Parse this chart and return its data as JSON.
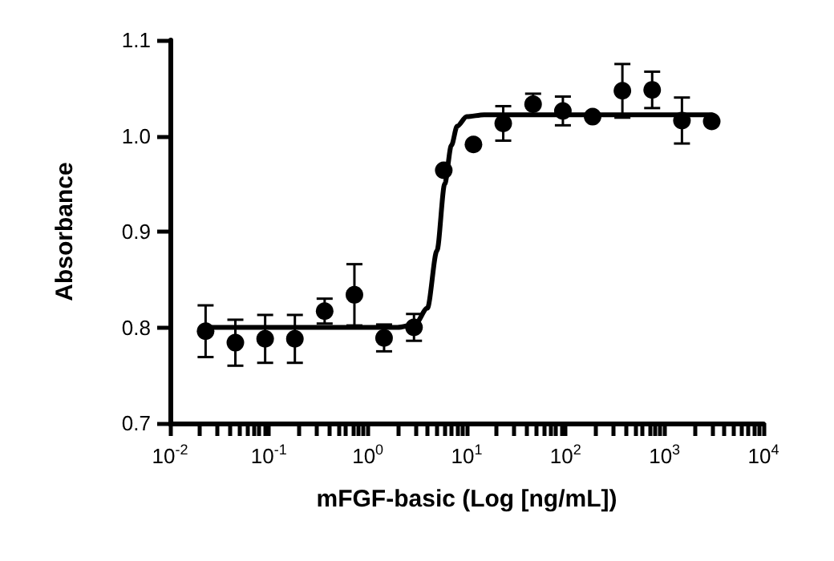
{
  "chart_data": {
    "type": "scatter",
    "xlabel": "mFGF-basic (Log [ng/mL])",
    "ylabel": "Absorbance",
    "log": "x",
    "marker": "circle",
    "grid": false,
    "xlim": [
      0.01,
      10000
    ],
    "xticks": [
      {
        "value": 0.01,
        "label": "10$^{-2}$"
      },
      {
        "value": 0.1,
        "label": "10$^{-1}$"
      },
      {
        "value": 1,
        "label": "10$^{0}$"
      },
      {
        "value": 10,
        "label": "10$^{1}$"
      },
      {
        "value": 100,
        "label": "10$^{2}$"
      },
      {
        "value": 1000,
        "label": "10$^{3}$"
      },
      {
        "value": 10000,
        "label": "10$^{4}$"
      }
    ],
    "ylim": [
      0.7,
      1.1
    ],
    "yticks": [
      {
        "value": 0.7,
        "label": "0.7"
      },
      {
        "value": 0.8,
        "label": "0.8"
      },
      {
        "value": 0.9,
        "label": "0.9"
      },
      {
        "value": 1.0,
        "label": "1.0"
      },
      {
        "value": 1.1,
        "label": "1.1"
      }
    ],
    "series": [
      {
        "color": "#000000",
        "x": [
          0.0229,
          0.0458,
          0.0916,
          0.183,
          0.366,
          0.732,
          1.46,
          2.93,
          5.86,
          11.7,
          23.4,
          46.9,
          93.8,
          187.5,
          375,
          750,
          1500,
          3000
        ],
        "values": [
          0.796,
          0.784,
          0.788,
          0.788,
          0.817,
          0.834,
          0.789,
          0.8,
          0.964,
          0.991,
          1.013,
          1.033,
          1.026,
          1.02,
          1.047,
          1.048,
          1.016,
          1.015
        ],
        "errors": [
          0.027,
          0.024,
          0.025,
          0.025,
          0.013,
          0.032,
          0.014,
          0.014,
          null,
          null,
          0.018,
          0.011,
          0.015,
          null,
          0.028,
          0.019,
          0.024,
          null
        ]
      },
      {
        "type": "line",
        "color": "#000000",
        "marker": "none",
        "x": [
          0.0229,
          2,
          3,
          4,
          5,
          6,
          7,
          8,
          10,
          15,
          3000
        ],
        "values": [
          0.8,
          0.8,
          0.803,
          0.82,
          0.88,
          0.95,
          0.99,
          1.01,
          1.02,
          1.022,
          1.022
        ]
      }
    ]
  }
}
